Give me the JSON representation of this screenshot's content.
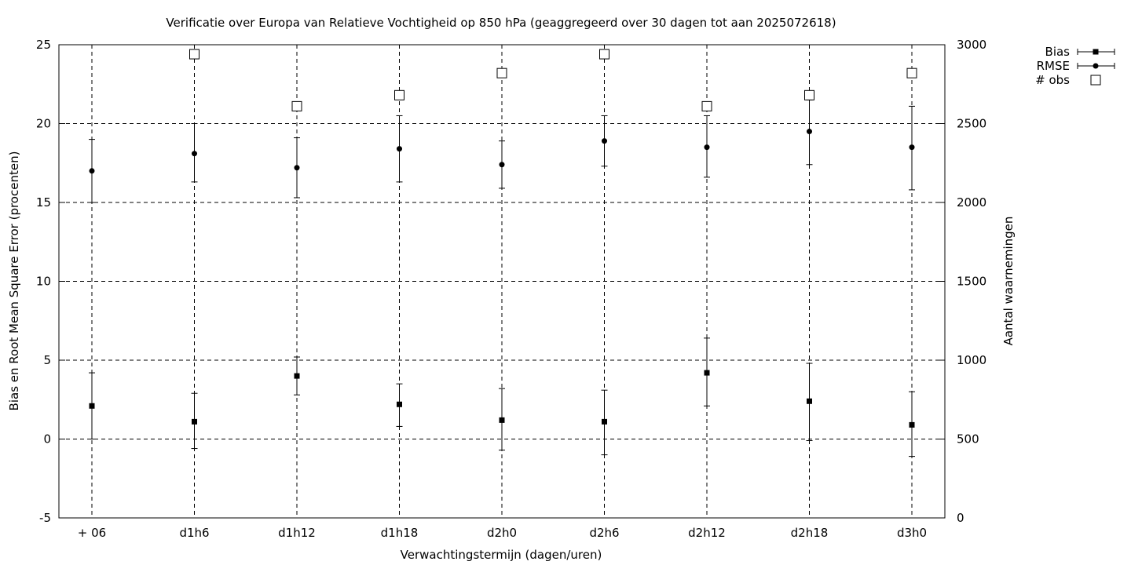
{
  "chart_data": {
    "type": "scatter",
    "title": "Verificatie over Europa van Relatieve Vochtigheid op 850 hPa (geaggregeerd over 30 dagen tot aan 2025072618)",
    "xlabel": "Verwachtingstermijn (dagen/uren)",
    "ylabel": "Bias en Root Mean Square Error (procenten)",
    "y2label": "Aantal waarnemingen",
    "categories": [
      "+ 06",
      "d1h6",
      "d1h12",
      "d1h18",
      "d2h0",
      "d2h6",
      "d2h12",
      "d2h18",
      "d3h0"
    ],
    "ylim": [
      -5,
      25
    ],
    "yticks": [
      -5,
      0,
      5,
      10,
      15,
      20,
      25
    ],
    "y2lim": [
      0,
      3000
    ],
    "y2ticks": [
      0,
      500,
      1000,
      1500,
      2000,
      2500,
      3000
    ],
    "grid": true,
    "legend_position": "top-right, outside plot",
    "series": [
      {
        "name": "Bias",
        "marker": "square",
        "axis": "left",
        "values": [
          2.1,
          1.1,
          4.0,
          2.2,
          1.2,
          1.1,
          4.2,
          2.4,
          0.9
        ],
        "err_low": [
          0.0,
          -0.6,
          2.8,
          0.8,
          -0.7,
          -1.0,
          2.1,
          -0.1,
          -1.1
        ],
        "err_high": [
          4.2,
          2.9,
          5.2,
          3.5,
          3.2,
          3.1,
          6.4,
          4.8,
          3.0
        ]
      },
      {
        "name": "RMSE",
        "marker": "circle",
        "axis": "left",
        "values": [
          17.0,
          18.1,
          17.2,
          18.4,
          17.4,
          18.9,
          18.5,
          19.5,
          18.5
        ],
        "err_low": [
          15.0,
          16.3,
          15.3,
          16.3,
          15.9,
          17.3,
          16.6,
          17.4,
          15.8
        ],
        "err_high": [
          19.0,
          20.0,
          19.1,
          20.5,
          18.9,
          20.5,
          20.5,
          21.5,
          21.1
        ]
      },
      {
        "name": "# obs",
        "marker": "open-square",
        "axis": "right",
        "values": [
          null,
          2940,
          2610,
          2680,
          2820,
          2940,
          2610,
          2680,
          2820
        ]
      }
    ]
  }
}
